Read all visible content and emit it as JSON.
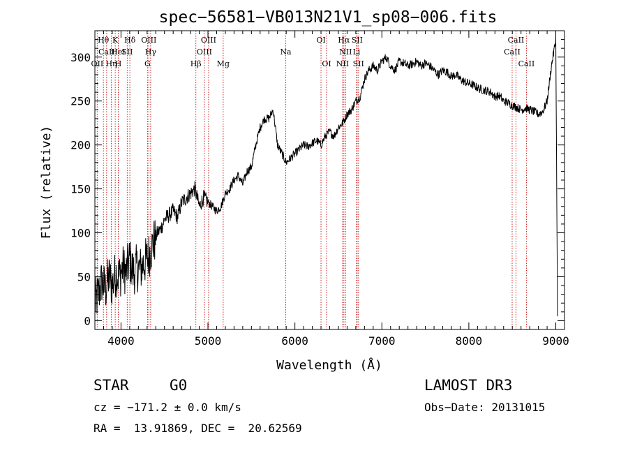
{
  "chart_data": {
    "type": "line",
    "title": "spec−56581−VB013N21V1_sp08−006.fits",
    "xlabel": "Wavelength (Å)",
    "ylabel": "Flux (relative)",
    "xlim": [
      3700,
      9100
    ],
    "ylim": [
      -10,
      330
    ],
    "xticks": [
      4000,
      5000,
      6000,
      7000,
      8000,
      9000
    ],
    "yticks": [
      0,
      50,
      100,
      150,
      200,
      250,
      300
    ],
    "series": [
      {
        "name": "flux",
        "x": [
          3700,
          3740,
          3780,
          3820,
          3860,
          3900,
          3940,
          3980,
          4020,
          4060,
          4100,
          4140,
          4180,
          4220,
          4260,
          4300,
          4340,
          4380,
          4420,
          4460,
          4500,
          4550,
          4600,
          4650,
          4700,
          4750,
          4800,
          4850,
          4900,
          4950,
          5000,
          5050,
          5100,
          5150,
          5200,
          5250,
          5300,
          5350,
          5400,
          5450,
          5500,
          5550,
          5600,
          5650,
          5700,
          5750,
          5800,
          5850,
          5900,
          5950,
          6000,
          6050,
          6100,
          6150,
          6200,
          6250,
          6300,
          6350,
          6400,
          6450,
          6500,
          6550,
          6600,
          6650,
          6700,
          6750,
          6800,
          6850,
          6900,
          6950,
          7000,
          7050,
          7100,
          7150,
          7200,
          7250,
          7300,
          7350,
          7400,
          7450,
          7500,
          7550,
          7600,
          7650,
          7700,
          7750,
          7800,
          7850,
          7900,
          7950,
          8000,
          8050,
          8100,
          8150,
          8200,
          8250,
          8300,
          8350,
          8400,
          8450,
          8500,
          8550,
          8600,
          8650,
          8700,
          8750,
          8800,
          8850,
          8900,
          8950,
          9000,
          9020
        ],
        "y": [
          20,
          30,
          45,
          35,
          50,
          40,
          55,
          50,
          60,
          55,
          70,
          55,
          60,
          58,
          65,
          70,
          80,
          90,
          100,
          105,
          115,
          120,
          125,
          118,
          135,
          140,
          145,
          150,
          130,
          140,
          135,
          130,
          125,
          130,
          145,
          150,
          160,
          165,
          155,
          170,
          175,
          200,
          220,
          230,
          230,
          240,
          200,
          190,
          180,
          185,
          190,
          195,
          200,
          198,
          202,
          205,
          200,
          210,
          215,
          210,
          220,
          225,
          235,
          240,
          250,
          255,
          275,
          285,
          290,
          285,
          295,
          300,
          290,
          285,
          295,
          293,
          290,
          292,
          295,
          290,
          293,
          290,
          285,
          280,
          285,
          283,
          278,
          280,
          275,
          272,
          270,
          268,
          265,
          263,
          262,
          260,
          255,
          256,
          250,
          248,
          245,
          243,
          240,
          242,
          240,
          238,
          235,
          238,
          250,
          290,
          320,
          5
        ]
      }
    ],
    "lines": [
      {
        "name": "O II",
        "x": 3727,
        "row": 3,
        "label": "OII"
      },
      {
        "name": "H theta",
        "x": 3798,
        "row": 1,
        "label": "Hθ"
      },
      {
        "name": "Ca II H",
        "x": 3835,
        "row": 2,
        "label": "CaII"
      },
      {
        "name": "H eta",
        "x": 3889,
        "row": 3,
        "label": "Hη"
      },
      {
        "name": "K",
        "x": 3934,
        "row": 1,
        "label": "K"
      },
      {
        "name": "He I",
        "x": 3970,
        "row": 2,
        "label": "HeI"
      },
      {
        "name": "H",
        "x": 3969,
        "row": 3,
        "label": "H"
      },
      {
        "name": "S II a",
        "x": 4072,
        "row": 2,
        "label": "SII"
      },
      {
        "name": "H delta",
        "x": 4102,
        "row": 1,
        "label": "Hδ"
      },
      {
        "name": "G",
        "x": 4305,
        "row": 3,
        "label": "G"
      },
      {
        "name": "O III a",
        "x": 4320,
        "row": 1,
        "label": "OIII"
      },
      {
        "name": "H gamma",
        "x": 4341,
        "row": 2,
        "label": "Hγ"
      },
      {
        "name": "H beta",
        "x": 4861,
        "row": 3,
        "label": "Hβ"
      },
      {
        "name": "O III b",
        "x": 4959,
        "row": 2,
        "label": "OIII"
      },
      {
        "name": "O III c",
        "x": 5007,
        "row": 1,
        "label": "OIII"
      },
      {
        "name": "Mg",
        "x": 5175,
        "row": 3,
        "label": "Mg"
      },
      {
        "name": "Na",
        "x": 5894,
        "row": 2,
        "label": "Na"
      },
      {
        "name": "O I a",
        "x": 6300,
        "row": 1,
        "label": "OI"
      },
      {
        "name": "O I b",
        "x": 6364,
        "row": 3,
        "label": "OI"
      },
      {
        "name": "N II a",
        "x": 6548,
        "row": 3,
        "label": "NII"
      },
      {
        "name": "N II b",
        "x": 6583,
        "row": 2,
        "label": "NII"
      },
      {
        "name": "H alpha",
        "x": 6563,
        "row": 1,
        "label": "Hα"
      },
      {
        "name": "Li",
        "x": 6708,
        "row": 2,
        "label": "Li"
      },
      {
        "name": "S II b",
        "x": 6716,
        "row": 1,
        "label": "SII"
      },
      {
        "name": "S II c",
        "x": 6731,
        "row": 3,
        "label": "SII"
      },
      {
        "name": "Ca II a",
        "x": 8498,
        "row": 2,
        "label": "CaII"
      },
      {
        "name": "Ca II b",
        "x": 8542,
        "row": 1,
        "label": "CaII"
      },
      {
        "name": "Ca II c",
        "x": 8662,
        "row": 3,
        "label": "CaII"
      }
    ],
    "colors": {
      "spectrum": "#000000",
      "lines": "#cc2222",
      "axes": "#000000"
    },
    "grid": false
  },
  "info": {
    "object_type": "STAR",
    "subclass": "G0",
    "survey": "LAMOST DR3",
    "cz_line": "cz = −171.2 ± 0.0 km/s",
    "obs_date_line": "Obs−Date: 20131015",
    "coords_line": "RA =  13.91869, DEC =  20.62569"
  }
}
